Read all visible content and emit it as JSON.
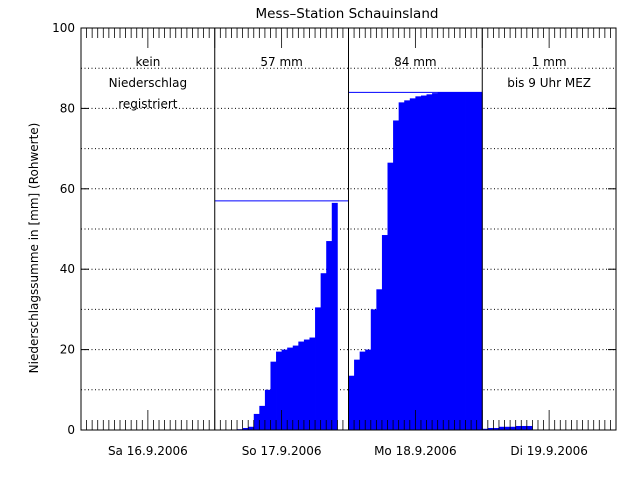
{
  "chart_data": {
    "type": "bar",
    "title": "Mess–Station Schauinsland",
    "ylabel": "Niederschlagssumme in [mm] (Rohwerte)",
    "xlabel": "",
    "ylim": [
      0,
      100
    ],
    "yticks": [
      0,
      20,
      40,
      60,
      80,
      100
    ],
    "grid": "horizontal dotted every 10",
    "colors": {
      "bars": "#0000ff",
      "axes": "#000000",
      "background": "#ffffff"
    },
    "days": [
      {
        "label": "Sa 16.9.2006",
        "annotation": [
          "kein",
          "Niederschlag",
          "registriert"
        ],
        "total_line": null,
        "hourly_values": [
          0,
          0,
          0,
          0,
          0,
          0,
          0,
          0,
          0,
          0,
          0,
          0,
          0,
          0,
          0,
          0,
          0,
          0,
          0,
          0,
          0,
          0,
          0,
          0
        ]
      },
      {
        "label": "So 17.9.2006",
        "annotation": [
          "57 mm"
        ],
        "total_line": 57,
        "hourly_values": [
          0,
          0,
          0,
          0,
          0.2,
          0.5,
          0.8,
          4,
          6,
          10,
          17,
          19.5,
          20,
          20.5,
          21,
          22,
          22.5,
          23,
          30.5,
          39,
          47,
          56.5,
          0,
          0
        ]
      },
      {
        "label": "Mo 18.9.2006",
        "annotation": [
          "84 mm"
        ],
        "total_line": 84,
        "hourly_values": [
          13.5,
          17.5,
          19.5,
          20,
          30,
          35,
          48.5,
          66.5,
          77,
          81.5,
          82,
          82.5,
          83,
          83.2,
          83.5,
          83.8,
          84,
          84,
          84,
          84,
          84,
          84,
          84,
          84
        ]
      },
      {
        "label": "Di 19.9.2006",
        "annotation": [
          "1 mm",
          "bis 9 Uhr MEZ"
        ],
        "total_line": null,
        "hourly_values": [
          0.3,
          0.5,
          0.5,
          0.8,
          0.8,
          0.8,
          1,
          1,
          1
        ]
      }
    ]
  }
}
